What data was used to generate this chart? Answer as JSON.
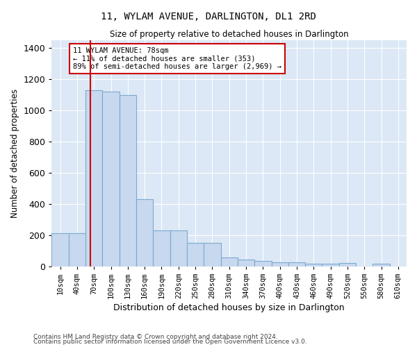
{
  "title": "11, WYLAM AVENUE, DARLINGTON, DL1 2RD",
  "subtitle": "Size of property relative to detached houses in Darlington",
  "xlabel": "Distribution of detached houses by size in Darlington",
  "ylabel": "Number of detached properties",
  "bar_color": "#c8d8ee",
  "bar_edge_color": "#7aaad0",
  "background_color": "#dce8f5",
  "grid_color": "#ffffff",
  "categories": [
    "10sqm",
    "40sqm",
    "70sqm",
    "100sqm",
    "130sqm",
    "160sqm",
    "190sqm",
    "220sqm",
    "250sqm",
    "280sqm",
    "310sqm",
    "340sqm",
    "370sqm",
    "400sqm",
    "430sqm",
    "460sqm",
    "490sqm",
    "520sqm",
    "550sqm",
    "580sqm",
    "610sqm"
  ],
  "values": [
    210,
    210,
    1130,
    1120,
    1100,
    430,
    230,
    230,
    150,
    150,
    58,
    42,
    35,
    25,
    25,
    15,
    15,
    18,
    0,
    16,
    0
  ],
  "vline_bin": 2,
  "annotation_text": "11 WYLAM AVENUE: 78sqm\n← 11% of detached houses are smaller (353)\n89% of semi-detached houses are larger (2,969) →",
  "annotation_box_color": "white",
  "annotation_box_edge_color": "#cc0000",
  "vline_color": "#cc0000",
  "ylim": [
    0,
    1450
  ],
  "yticks": [
    0,
    200,
    400,
    600,
    800,
    1000,
    1200,
    1400
  ],
  "footnote1": "Contains HM Land Registry data © Crown copyright and database right 2024.",
  "footnote2": "Contains public sector information licensed under the Open Government Licence v3.0."
}
